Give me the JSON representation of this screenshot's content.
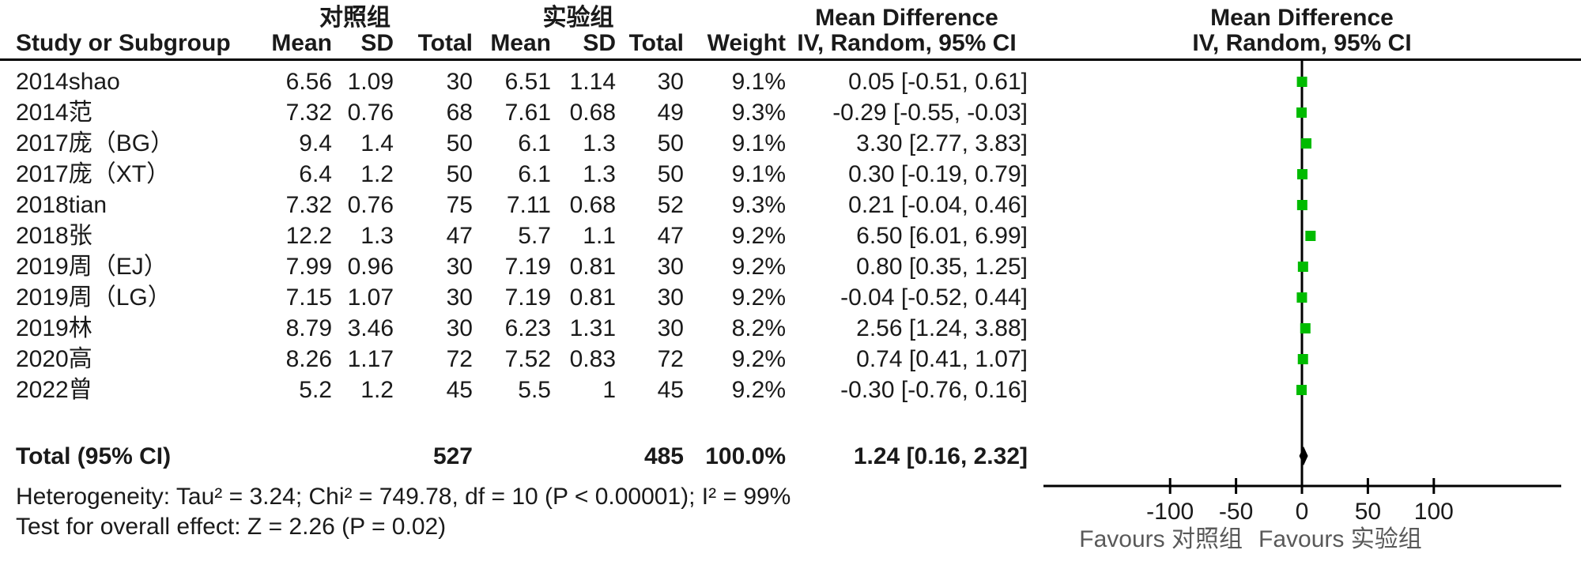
{
  "header": {
    "group_control": "对照组",
    "group_experimental": "实验组",
    "md_col_title": "Mean Difference",
    "md_col_subtitle": "IV, Random, 95% CI",
    "md_plot_title": "Mean Difference",
    "md_plot_subtitle": "IV, Random, 95% CI",
    "col_study": "Study or Subgroup",
    "col_mean_c": "Mean",
    "col_sd_c": "SD",
    "col_total_c": "Total",
    "col_mean_e": "Mean",
    "col_sd_e": "SD",
    "col_total_e": "Total",
    "col_weight": "Weight"
  },
  "chart_data": {
    "type": "scatter",
    "title": "Mean Difference forest plot (IV, Random, 95% CI)",
    "marker_color": "#00BB00",
    "diamond_color": "#000000",
    "axis": {
      "ticks": [
        -100,
        -50,
        0,
        50,
        100
      ],
      "xlim": [
        -197,
        197
      ],
      "favours_left": "Favours 对照组",
      "favours_right": "Favours 实验组"
    },
    "studies": [
      {
        "label": "2014shao",
        "control": {
          "mean": "6.56",
          "sd": "1.09",
          "total": "30"
        },
        "experimental": {
          "mean": "6.51",
          "sd": "1.14",
          "total": "30"
        },
        "weight": "9.1%",
        "md_text": "0.05 [-0.51, 0.61]",
        "effect": 0.05,
        "ci_low": -0.51,
        "ci_high": 0.61
      },
      {
        "label": "2014范",
        "control": {
          "mean": "7.32",
          "sd": "0.76",
          "total": "68"
        },
        "experimental": {
          "mean": "7.61",
          "sd": "0.68",
          "total": "49"
        },
        "weight": "9.3%",
        "md_text": "-0.29 [-0.55, -0.03]",
        "effect": -0.29,
        "ci_low": -0.55,
        "ci_high": -0.03
      },
      {
        "label": "2017庞（BG）",
        "control": {
          "mean": "9.4",
          "sd": "1.4",
          "total": "50"
        },
        "experimental": {
          "mean": "6.1",
          "sd": "1.3",
          "total": "50"
        },
        "weight": "9.1%",
        "md_text": "3.30 [2.77, 3.83]",
        "effect": 3.3,
        "ci_low": 2.77,
        "ci_high": 3.83
      },
      {
        "label": "2017庞（XT）",
        "control": {
          "mean": "6.4",
          "sd": "1.2",
          "total": "50"
        },
        "experimental": {
          "mean": "6.1",
          "sd": "1.3",
          "total": "50"
        },
        "weight": "9.1%",
        "md_text": "0.30 [-0.19, 0.79]",
        "effect": 0.3,
        "ci_low": -0.19,
        "ci_high": 0.79
      },
      {
        "label": "2018tian",
        "control": {
          "mean": "7.32",
          "sd": "0.76",
          "total": "75"
        },
        "experimental": {
          "mean": "7.11",
          "sd": "0.68",
          "total": "52"
        },
        "weight": "9.3%",
        "md_text": "0.21 [-0.04, 0.46]",
        "effect": 0.21,
        "ci_low": -0.04,
        "ci_high": 0.46
      },
      {
        "label": "2018张",
        "control": {
          "mean": "12.2",
          "sd": "1.3",
          "total": "47"
        },
        "experimental": {
          "mean": "5.7",
          "sd": "1.1",
          "total": "47"
        },
        "weight": "9.2%",
        "md_text": "6.50 [6.01, 6.99]",
        "effect": 6.5,
        "ci_low": 6.01,
        "ci_high": 6.99
      },
      {
        "label": "2019周（EJ）",
        "control": {
          "mean": "7.99",
          "sd": "0.96",
          "total": "30"
        },
        "experimental": {
          "mean": "7.19",
          "sd": "0.81",
          "total": "30"
        },
        "weight": "9.2%",
        "md_text": "0.80 [0.35, 1.25]",
        "effect": 0.8,
        "ci_low": 0.35,
        "ci_high": 1.25
      },
      {
        "label": "2019周（LG）",
        "control": {
          "mean": "7.15",
          "sd": "1.07",
          "total": "30"
        },
        "experimental": {
          "mean": "7.19",
          "sd": "0.81",
          "total": "30"
        },
        "weight": "9.2%",
        "md_text": "-0.04 [-0.52, 0.44]",
        "effect": -0.04,
        "ci_low": -0.52,
        "ci_high": 0.44
      },
      {
        "label": "2019林",
        "control": {
          "mean": "8.79",
          "sd": "3.46",
          "total": "30"
        },
        "experimental": {
          "mean": "6.23",
          "sd": "1.31",
          "total": "30"
        },
        "weight": "8.2%",
        "md_text": "2.56 [1.24, 3.88]",
        "effect": 2.56,
        "ci_low": 1.24,
        "ci_high": 3.88
      },
      {
        "label": "2020高",
        "control": {
          "mean": "8.26",
          "sd": "1.17",
          "total": "72"
        },
        "experimental": {
          "mean": "7.52",
          "sd": "0.83",
          "total": "72"
        },
        "weight": "9.2%",
        "md_text": "0.74 [0.41, 1.07]",
        "effect": 0.74,
        "ci_low": 0.41,
        "ci_high": 1.07
      },
      {
        "label": "2022曾",
        "control": {
          "mean": "5.2",
          "sd": "1.2",
          "total": "45"
        },
        "experimental": {
          "mean": "5.5",
          "sd": "1",
          "total": "45"
        },
        "weight": "9.2%",
        "md_text": "-0.30 [-0.76, 0.16]",
        "effect": -0.3,
        "ci_low": -0.76,
        "ci_high": 0.16
      }
    ],
    "total": {
      "label": "Total (95% CI)",
      "control_total": "527",
      "experimental_total": "485",
      "weight": "100.0%",
      "md_text": "1.24 [0.16, 2.32]",
      "effect": 1.24,
      "ci_low": 0.16,
      "ci_high": 2.32
    }
  },
  "footer": {
    "heterogeneity": "Heterogeneity: Tau² = 3.24; Chi² = 749.78, df = 10 (P < 0.00001); I² = 99%",
    "overall_effect": "Test for overall effect: Z = 2.26 (P = 0.02)"
  }
}
